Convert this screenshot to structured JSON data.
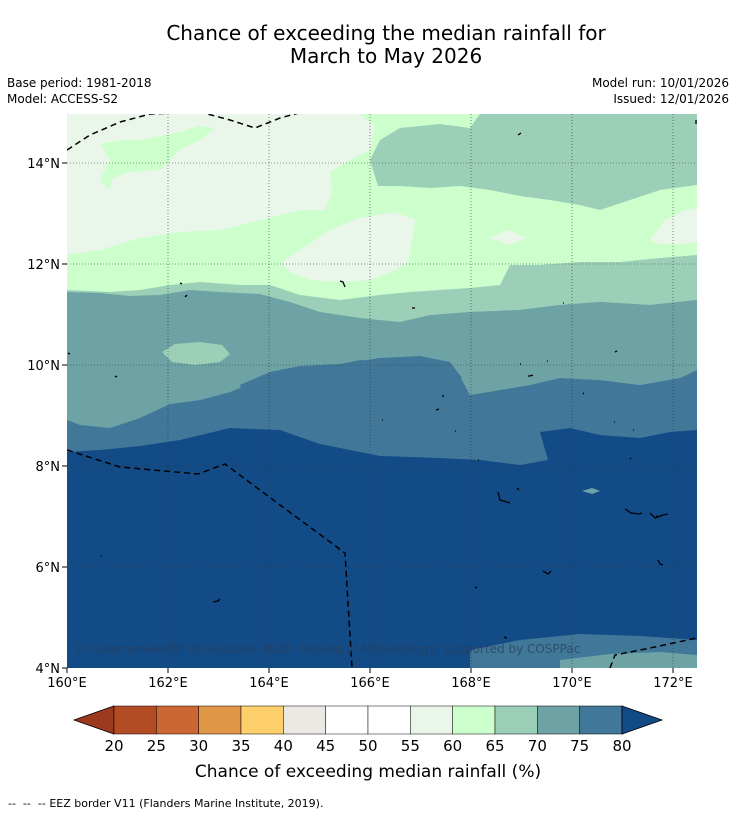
{
  "title": {
    "line1": "Chance of exceeding the median rainfall for",
    "line2": "March to May 2026"
  },
  "meta": {
    "base_period": "Base period: 1981-2018",
    "model": "Model: ACCESS-S2",
    "model_run": "Model run: 10/01/2026",
    "issued": "Issued: 12/01/2026"
  },
  "map": {
    "lon_labels": [
      "160°E",
      "162°E",
      "164°E",
      "166°E",
      "168°E",
      "170°E",
      "172°E"
    ],
    "lat_labels": [
      "14°N",
      "12°N",
      "10°N",
      "8°N",
      "6°N",
      "4°N"
    ],
    "copyright": "© Commonwealth of Australia 2026, Bureau of Meteorology, supported by COSPPac"
  },
  "colorbar": {
    "title": "Chance of exceeding median rainfall (%)",
    "ticks": [
      "20",
      "25",
      "30",
      "35",
      "40",
      "45",
      "50",
      "55",
      "60",
      "65",
      "70",
      "75",
      "80"
    ],
    "colors": [
      "#b34b25",
      "#cc6633",
      "#e09647",
      "#fdd06c",
      "#ece9e4",
      "#ffffff",
      "#ffffff",
      "#eaf6ea",
      "#ccffcc",
      "#9ccfb8",
      "#6ea3a6",
      "#41789a",
      "#134b87"
    ],
    "below_color": "#9c3a1f",
    "above_color": "#134b87"
  },
  "legend": {
    "eez_note": "EEZ border V11 (Flanders Marine Institute, 2019)."
  }
}
